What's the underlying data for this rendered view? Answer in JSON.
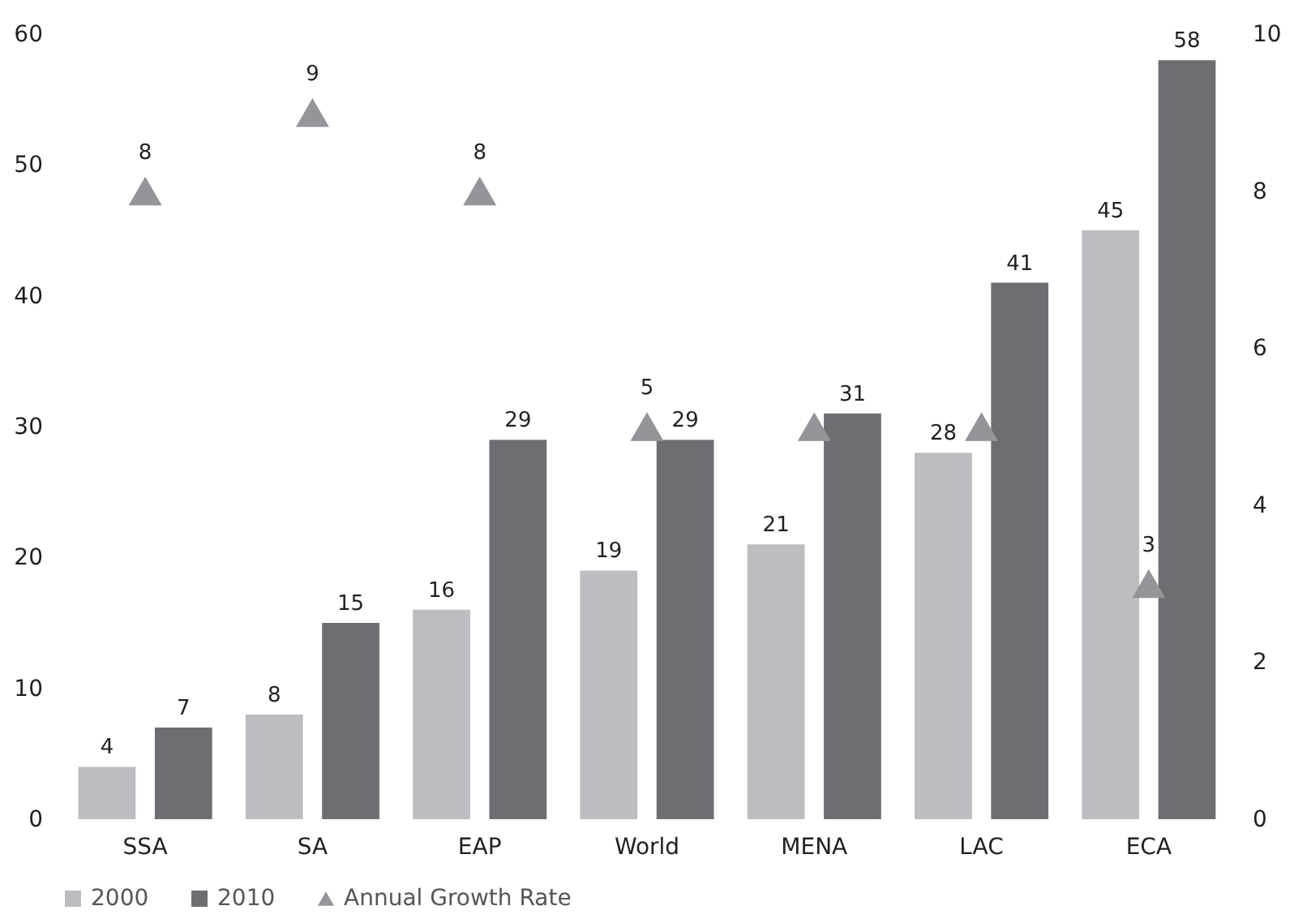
{
  "chart_data": {
    "type": "bar",
    "categories": [
      "SSA",
      "SA",
      "EAP",
      "World",
      "MENA",
      "LAC",
      "ECA"
    ],
    "series": [
      {
        "name": "2000",
        "color": "#bcbdc0",
        "values": [
          4,
          8,
          16,
          19,
          21,
          28,
          45
        ]
      },
      {
        "name": "2010",
        "color": "#6d6e71",
        "values": [
          7,
          15,
          29,
          29,
          31,
          41,
          58
        ]
      },
      {
        "name": "Annual Growth Rate",
        "type": "scatter",
        "axis": "y2",
        "marker": "triangle",
        "color": "#939598",
        "values": [
          8,
          9,
          8,
          5,
          5,
          5,
          3
        ],
        "value_labels": [
          "8",
          "9",
          "8",
          "5",
          null,
          null,
          "3"
        ]
      }
    ],
    "data_labels": true,
    "ylim": [
      0,
      60
    ],
    "yticks": [
      0,
      10,
      20,
      30,
      40,
      50,
      60
    ],
    "y2lim": [
      0,
      10
    ],
    "y2ticks": [
      0,
      2,
      4,
      6,
      8,
      10
    ],
    "grid": false,
    "legend": "bottom"
  }
}
